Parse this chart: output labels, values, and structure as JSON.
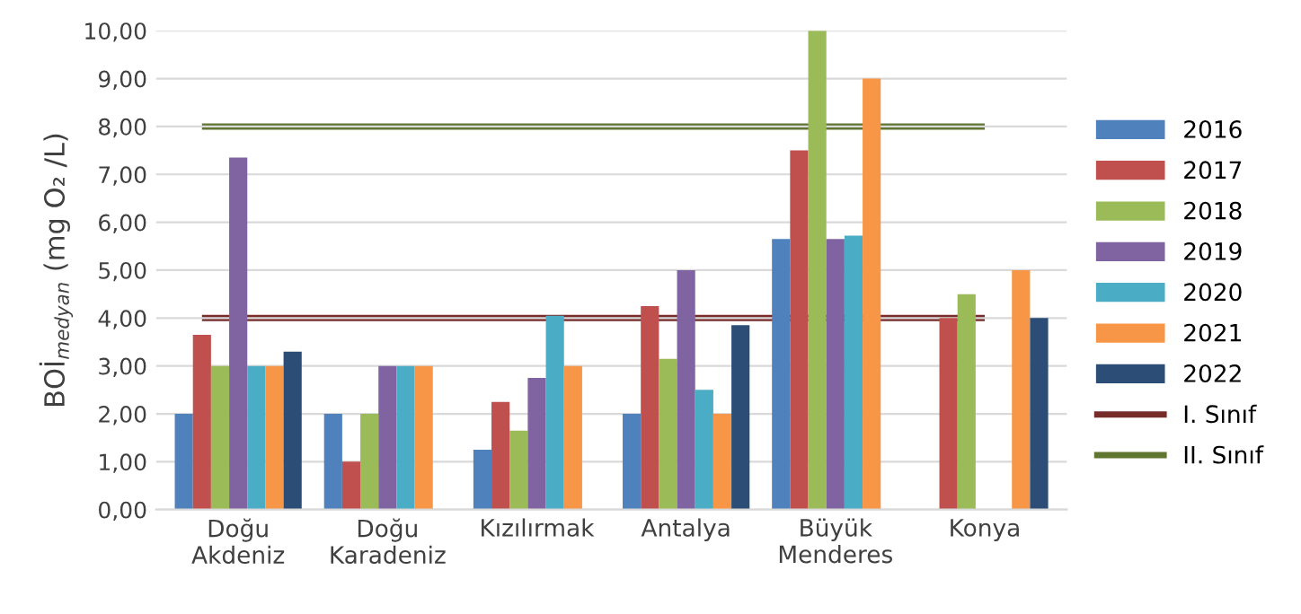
{
  "chart_data": {
    "type": "bar",
    "ylabel": "BOİ$_{medyan}$ (mg O₂ /L)",
    "categories": [
      "Doğu\nAkdeniz",
      "Doğu\nKaradeniz",
      "Kızılırmak",
      "Antalya",
      "Büyük\nMenderes",
      "Konya"
    ],
    "series": [
      {
        "name": "2016",
        "color": "#4f81bd",
        "values": [
          2.0,
          2.0,
          1.25,
          2.0,
          5.65,
          null
        ]
      },
      {
        "name": "2017",
        "color": "#c0504d",
        "values": [
          3.65,
          1.0,
          2.25,
          4.25,
          7.5,
          4.0
        ]
      },
      {
        "name": "2018",
        "color": "#9bbb59",
        "values": [
          3.0,
          2.0,
          1.65,
          3.15,
          10.0,
          4.5
        ]
      },
      {
        "name": "2019",
        "color": "#8064a2",
        "values": [
          7.35,
          3.0,
          2.75,
          5.0,
          5.65,
          null
        ]
      },
      {
        "name": "2020",
        "color": "#4bacc6",
        "values": [
          3.0,
          3.0,
          4.05,
          2.5,
          5.72,
          null
        ]
      },
      {
        "name": "2021",
        "color": "#f79646",
        "values": [
          3.0,
          3.0,
          3.0,
          2.0,
          9.0,
          5.0
        ]
      },
      {
        "name": "2022",
        "color": "#2c4d75",
        "values": [
          3.3,
          null,
          null,
          3.85,
          null,
          4.0
        ]
      }
    ],
    "ref_lines": [
      {
        "axis": "y",
        "value": 4,
        "label": "I. Sınıf",
        "color": "#772c2a"
      },
      {
        "axis": "y",
        "value": 8,
        "label": "II. Sınıf",
        "color": "#5f7530"
      }
    ],
    "ylim": [
      0,
      10
    ],
    "yticks": [
      {
        "value": 0,
        "label": "0,00"
      },
      {
        "value": 1,
        "label": "1,00"
      },
      {
        "value": 2,
        "label": "2,00"
      },
      {
        "value": 3,
        "label": "3,00"
      },
      {
        "value": 4,
        "label": "4,00"
      },
      {
        "value": 5,
        "label": "5,00"
      },
      {
        "value": 6,
        "label": "6,00"
      },
      {
        "value": 7,
        "label": "7,00"
      },
      {
        "value": 8,
        "label": "8,00"
      },
      {
        "value": 9,
        "label": "9,00"
      },
      {
        "value": 10,
        "label": "10,00"
      }
    ],
    "grid": "y",
    "legend": "right"
  }
}
